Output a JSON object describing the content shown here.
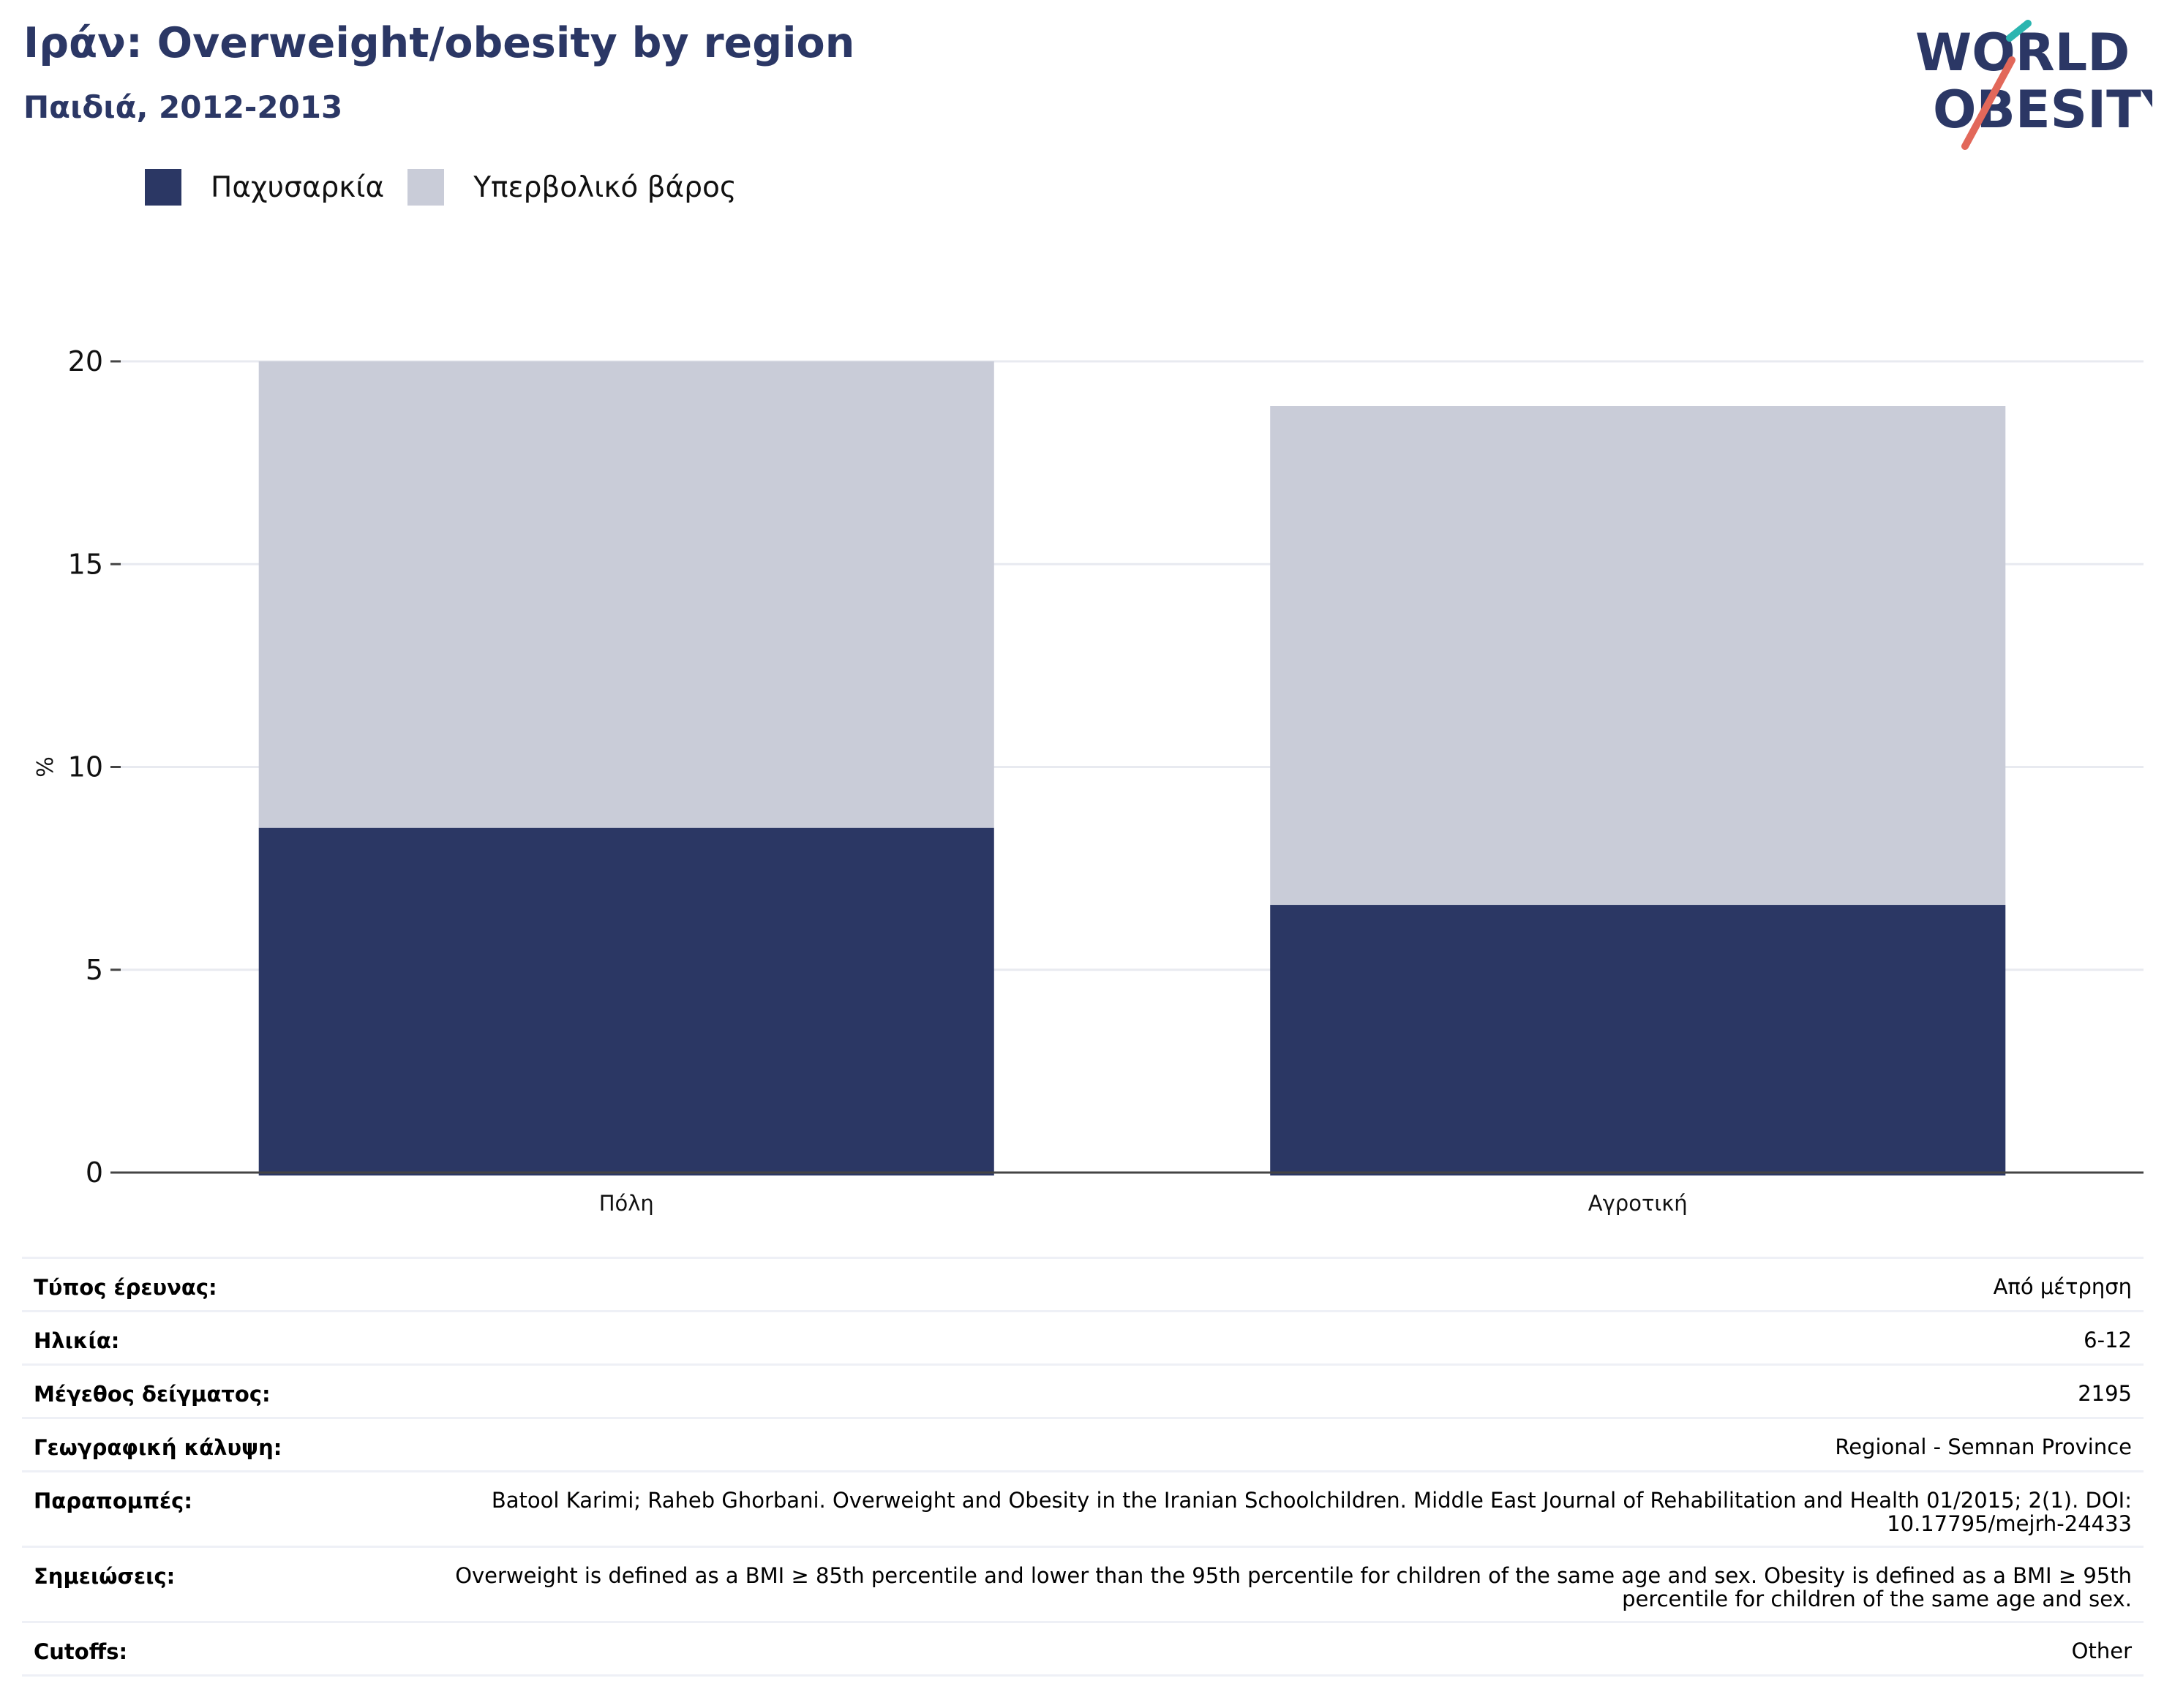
{
  "header": {
    "title": "Ιράν: Overweight/obesity by region",
    "subtitle": "Παιδιά, 2012-2013"
  },
  "logo": {
    "line1": "WORLD",
    "line2": "OBESITY"
  },
  "legend": [
    {
      "label": "Παχυσαρκία",
      "color": "#2b3764"
    },
    {
      "label": "Υπερβολικό βάρος",
      "color": "#c9ccd8"
    }
  ],
  "chart_data": {
    "type": "bar",
    "stacked": true,
    "categories": [
      "Πόλη",
      "Αγροτική"
    ],
    "series": [
      {
        "name": "Παχυσαρκία",
        "values": [
          8.5,
          6.6
        ],
        "color": "#2b3764"
      },
      {
        "name": "Υπερβολικό βάρος",
        "values": [
          11.5,
          12.3
        ],
        "color": "#c9ccd8"
      }
    ],
    "ylabel": "%",
    "ylim": [
      0,
      20
    ],
    "yticks": [
      0,
      5,
      10,
      15,
      20
    ],
    "grid": true,
    "legend_position": "top-left"
  },
  "info_rows": [
    {
      "label": "Τύπος έρευνας:",
      "value": "Από μέτρηση"
    },
    {
      "label": "Ηλικία:",
      "value": "6-12"
    },
    {
      "label": "Μέγεθος δείγματος:",
      "value": "2195"
    },
    {
      "label": "Γεωγραφική κάλυψη:",
      "value": "Regional - Semnan Province"
    },
    {
      "label": "Παραπομπές:",
      "value": "Batool Karimi; Raheb Ghorbani. Overweight and Obesity in the Iranian Schoolchildren. Middle East Journal of Rehabilitation and Health 01/2015; 2(1). DOI: 10.17795/mejrh-24433"
    },
    {
      "label": "Σημειώσεις:",
      "value": "Overweight is defined as a BMI ≥ 85th percentile and lower than the 95th percentile for children of the same age and sex. Obesity is defined as a BMI ≥ 95th percentile for children of the same age and sex."
    },
    {
      "label": "Cutoffs:",
      "value": "Other"
    }
  ]
}
